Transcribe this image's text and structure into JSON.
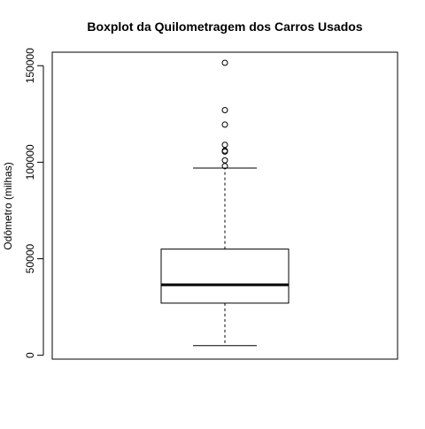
{
  "chart_data": {
    "type": "boxplot",
    "title": "Boxplot da Quilometragem dos Carros Usados",
    "xlabel": "",
    "ylabel": "Odômetro (milhas)",
    "ylim": [
      -2000,
      157000
    ],
    "yticks": [
      0,
      50000,
      100000,
      150000
    ],
    "ytick_labels": [
      "0",
      "50000",
      "100000",
      "150000"
    ],
    "grid": false,
    "boxes": [
      {
        "whisker_low": 5000,
        "q1": 27000,
        "median": 36500,
        "q3": 55000,
        "whisker_high": 97000,
        "outliers": [
          98000,
          101000,
          105500,
          106000,
          109000,
          119500,
          127000,
          151500
        ]
      }
    ]
  }
}
